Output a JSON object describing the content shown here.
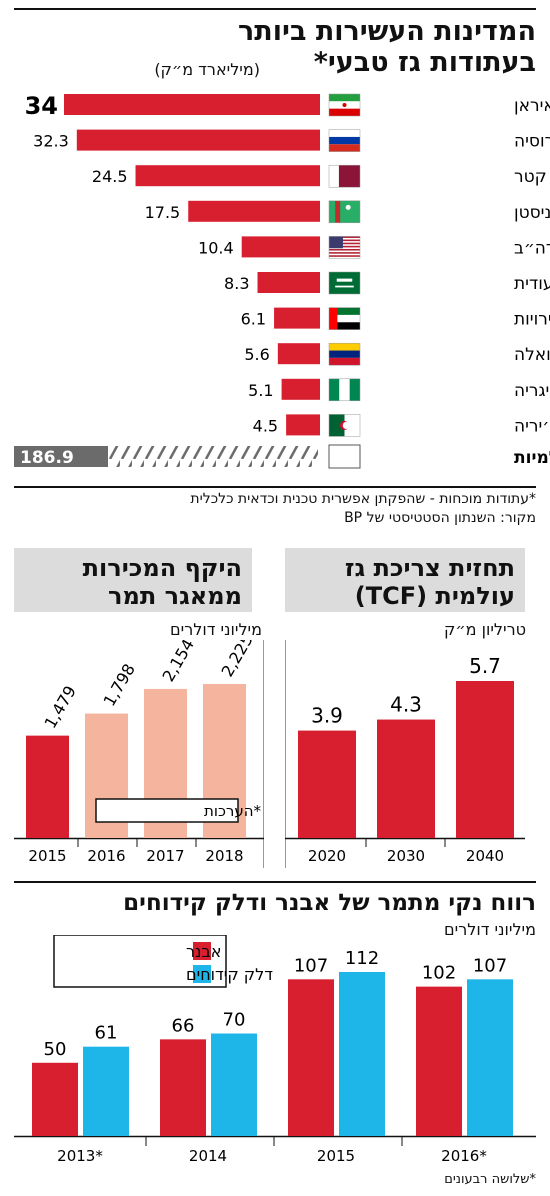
{
  "header": {
    "title_line1": "המדינות העשירות ביותר",
    "title_line2": "בעתודות גז טבעי*",
    "unit": "(מיליארד מ״ק)"
  },
  "reserves_chart": {
    "type": "bar",
    "categories": [
      "איראן",
      "רוסיה",
      "קטר",
      "טורקמניסטן",
      "ארה״ב",
      "ערב הסעודית",
      "איחוד האמירויות",
      "ונצואלה",
      "ניגריה",
      "אלג׳יריה"
    ],
    "value_labels": [
      "34",
      "32.3",
      "24.5",
      "17.5",
      "10.4",
      "8.3",
      "6.1",
      "5.6",
      "5.1",
      "4.5"
    ],
    "values": [
      34,
      32.3,
      24.5,
      17.5,
      10.4,
      8.3,
      6.1,
      5.6,
      5.1,
      4.5
    ],
    "flag_icons": [
      "iran-flag-icon",
      "russia-flag-icon",
      "qatar-flag-icon",
      "turkmenistan-flag-icon",
      "usa-flag-icon",
      "saudi-arabia-flag-icon",
      "uae-flag-icon",
      "venezuela-flag-icon",
      "nigeria-flag-icon",
      "algeria-flag-icon"
    ],
    "total_label": "עתודות עולמיות",
    "total_value_label": "186.9",
    "total_value": 186.9,
    "bar_color": "#d71f30",
    "total_color": "#6b6b6b"
  },
  "footnotes": {
    "line1": "*עתודות מוכחות - שהפקתן אפשרית טכנית וכדאית כלכלית",
    "line2": "מקור: השנתון הסטטיסטי של BP"
  },
  "consumption_chart": {
    "title_line1": "תחזית צריכת גז",
    "title_line2": "עולמית (TCF)",
    "unit": "טריליון מ״ק",
    "type": "bar",
    "categories": [
      "2020",
      "2030",
      "2040"
    ],
    "value_labels": [
      "3.9",
      "4.3",
      "5.7"
    ],
    "values": [
      3.9,
      4.3,
      5.7
    ],
    "color": "#d71f30"
  },
  "sales_chart": {
    "title_line1": "היקף המכירות",
    "title_line2": "ממאגר תמר",
    "unit": "מיליוני דולרים",
    "type": "bar",
    "categories": [
      "2015",
      "2016",
      "2017",
      "2018"
    ],
    "value_labels": [
      "1,479",
      "1,798",
      "2,154",
      "2,225"
    ],
    "values": [
      1479,
      1798,
      2154,
      2225
    ],
    "estimated": [
      false,
      true,
      true,
      true
    ],
    "legend_estimate": "*הערכות",
    "color_actual": "#d71f30",
    "color_estimate": "#f4b49e"
  },
  "profit_chart": {
    "title": "רווח נקי מתמר של אבנר ודלק קידוחים",
    "unit": "מיליוני דולרים",
    "type": "bar",
    "categories": [
      "2013*",
      "2014",
      "2015",
      "2016*"
    ],
    "series": [
      {
        "name": "אבנר",
        "values": [
          50,
          66,
          107,
          102
        ],
        "color": "#d71f30"
      },
      {
        "name": "דלק קידוחים",
        "values": [
          61,
          70,
          112,
          107
        ],
        "color": "#1eb6e8"
      }
    ],
    "footnote": "*שלושה רבעונים"
  }
}
